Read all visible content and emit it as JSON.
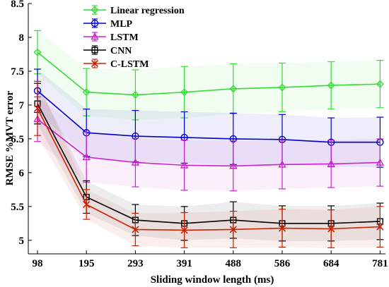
{
  "chart_data": {
    "type": "line",
    "title": "",
    "xlabel": "Sliding window length (ms)",
    "ylabel": "RMSE %MVT error",
    "x": [
      "98",
      "195",
      "293",
      "391",
      "488",
      "586",
      "684",
      "781"
    ],
    "ylim": [
      4.8,
      8.5
    ],
    "yticks": [
      5,
      5.5,
      6,
      6.5,
      7,
      7.5,
      8,
      8.5
    ],
    "grid": false,
    "legend_position": "top-center",
    "series": [
      {
        "name": "Linear regression",
        "color": "#33dd33",
        "marker": "diamond",
        "values": [
          7.78,
          7.19,
          7.15,
          7.19,
          7.24,
          7.26,
          7.29,
          7.31
        ],
        "error": [
          0.32,
          0.35,
          0.37,
          0.38,
          0.37,
          0.36,
          0.35,
          0.35
        ]
      },
      {
        "name": "MLP",
        "color": "#0000cc",
        "marker": "circle",
        "values": [
          7.21,
          6.59,
          6.54,
          6.52,
          6.5,
          6.49,
          6.45,
          6.45
        ],
        "error": [
          0.32,
          0.35,
          0.38,
          0.38,
          0.38,
          0.37,
          0.36,
          0.37
        ]
      },
      {
        "name": "LSTM",
        "color": "#cc22cc",
        "marker": "triangle",
        "values": [
          6.79,
          6.23,
          6.15,
          6.11,
          6.1,
          6.12,
          6.13,
          6.15
        ],
        "error": [
          0.33,
          0.37,
          0.36,
          0.37,
          0.37,
          0.36,
          0.35,
          0.35
        ]
      },
      {
        "name": "CNN",
        "color": "#000000",
        "marker": "square",
        "values": [
          7.02,
          5.64,
          5.3,
          5.25,
          5.3,
          5.25,
          5.25,
          5.28
        ],
        "error": [
          0.3,
          0.24,
          0.23,
          0.25,
          0.27,
          0.26,
          0.26,
          0.27
        ]
      },
      {
        "name": "C-LSTM",
        "color": "#cc2200",
        "marker": "x",
        "values": [
          6.95,
          5.53,
          5.16,
          5.15,
          5.16,
          5.18,
          5.17,
          5.2
        ],
        "error": [
          0.4,
          0.22,
          0.24,
          0.26,
          0.27,
          0.28,
          0.28,
          0.3
        ]
      }
    ]
  }
}
